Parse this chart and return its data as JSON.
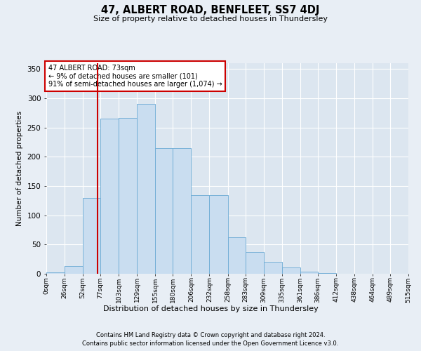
{
  "title": "47, ALBERT ROAD, BENFLEET, SS7 4DJ",
  "subtitle": "Size of property relative to detached houses in Thundersley",
  "xlabel": "Distribution of detached houses by size in Thundersley",
  "ylabel": "Number of detached properties",
  "footnote1": "Contains HM Land Registry data © Crown copyright and database right 2024.",
  "footnote2": "Contains public sector information licensed under the Open Government Licence v3.0.",
  "annotation_title": "47 ALBERT ROAD: 73sqm",
  "annotation_line1": "← 9% of detached houses are smaller (101)",
  "annotation_line2": "91% of semi-detached houses are larger (1,074) →",
  "bar_color": "#c9ddf0",
  "bar_edge_color": "#6aaad4",
  "bar_heights": [
    2,
    13,
    130,
    265,
    267,
    290,
    215,
    215,
    135,
    135,
    62,
    37,
    20,
    11,
    4,
    1,
    0,
    0,
    0,
    0
  ],
  "bin_edges": [
    0,
    26,
    52,
    77,
    103,
    129,
    155,
    180,
    206,
    232,
    258,
    283,
    309,
    335,
    361,
    386,
    412,
    438,
    464,
    489,
    515
  ],
  "bin_labels": [
    "0sqm",
    "26sqm",
    "52sqm",
    "77sqm",
    "103sqm",
    "129sqm",
    "155sqm",
    "180sqm",
    "206sqm",
    "232sqm",
    "258sqm",
    "283sqm",
    "309sqm",
    "335sqm",
    "361sqm",
    "386sqm",
    "412sqm",
    "438sqm",
    "464sqm",
    "489sqm",
    "515sqm"
  ],
  "vline_x": 73,
  "vline_color": "#cc0000",
  "ylim": [
    0,
    360
  ],
  "yticks": [
    0,
    50,
    100,
    150,
    200,
    250,
    300,
    350
  ],
  "annotation_box_color": "#ffffff",
  "annotation_box_edge": "#cc0000",
  "background_color": "#e8eef5",
  "plot_bg_color": "#dce6f0",
  "title_fontsize": 10.5,
  "subtitle_fontsize": 8,
  "footnote_fontsize": 6
}
